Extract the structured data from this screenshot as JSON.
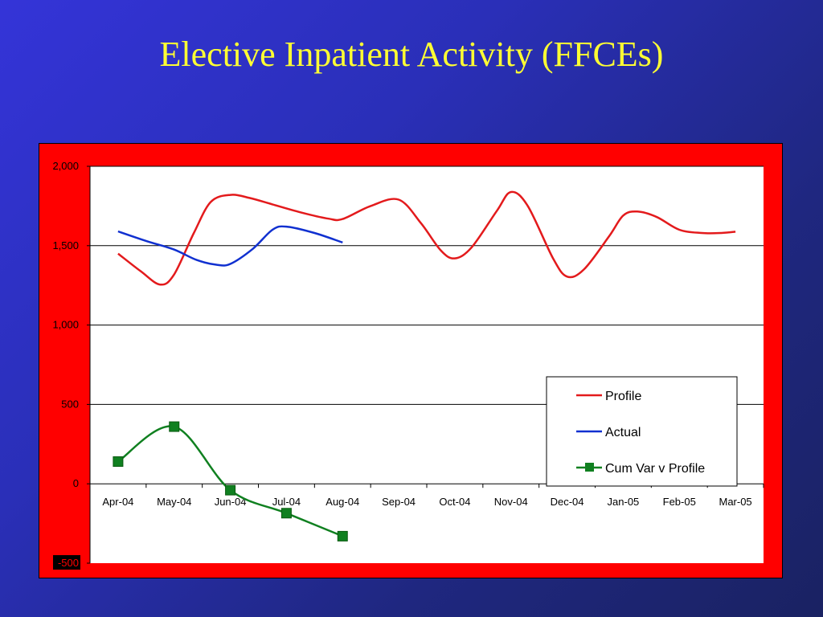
{
  "slide": {
    "title": "Elective Inpatient Activity (FFCEs)"
  },
  "colors": {
    "frame": "#ff0000",
    "plot_bg": "#ffffff",
    "profile": "#e31a1c",
    "actual": "#1030d0",
    "cumvar": "#108020"
  },
  "chart_data": {
    "type": "line",
    "title": "",
    "xlabel": "",
    "ylabel": "",
    "categories": [
      "Apr-04",
      "May-04",
      "Jun-04",
      "Jul-04",
      "Aug-04",
      "Sep-04",
      "Oct-04",
      "Nov-04",
      "Dec-04",
      "Jan-05",
      "Feb-05",
      "Mar-05"
    ],
    "ylim": [
      -500,
      2000
    ],
    "yticks": [
      -500,
      0,
      500,
      1000,
      1500,
      2000
    ],
    "ytick_labels": [
      "-500",
      "0",
      "500",
      "1,000",
      "1,500",
      "2,000"
    ],
    "grid": true,
    "legend_position": "right-center",
    "series": [
      {
        "name": "Profile",
        "marker": "none",
        "smooth": true,
        "points": [
          [
            0,
            1450
          ],
          [
            0.4,
            1340
          ],
          [
            0.75,
            1255
          ],
          [
            1.0,
            1320
          ],
          [
            1.35,
            1580
          ],
          [
            1.65,
            1775
          ],
          [
            2.0,
            1820
          ],
          [
            2.35,
            1800
          ],
          [
            2.75,
            1760
          ],
          [
            3.25,
            1710
          ],
          [
            3.75,
            1670
          ],
          [
            4.0,
            1668
          ],
          [
            4.5,
            1750
          ],
          [
            5.0,
            1790
          ],
          [
            5.4,
            1640
          ],
          [
            5.75,
            1470
          ],
          [
            6.0,
            1420
          ],
          [
            6.3,
            1490
          ],
          [
            6.75,
            1720
          ],
          [
            7.0,
            1838
          ],
          [
            7.3,
            1750
          ],
          [
            7.75,
            1420
          ],
          [
            8.0,
            1305
          ],
          [
            8.3,
            1350
          ],
          [
            8.75,
            1560
          ],
          [
            9.0,
            1690
          ],
          [
            9.25,
            1715
          ],
          [
            9.6,
            1680
          ],
          [
            10.0,
            1600
          ],
          [
            10.4,
            1580
          ],
          [
            10.75,
            1580
          ],
          [
            11.0,
            1588
          ]
        ]
      },
      {
        "name": "Actual",
        "marker": "none",
        "smooth": true,
        "points": [
          [
            0,
            1590
          ],
          [
            0.5,
            1530
          ],
          [
            1.0,
            1475
          ],
          [
            1.4,
            1410
          ],
          [
            1.75,
            1380
          ],
          [
            2.0,
            1385
          ],
          [
            2.4,
            1480
          ],
          [
            2.75,
            1600
          ],
          [
            3.0,
            1620
          ],
          [
            3.5,
            1580
          ],
          [
            4.0,
            1520
          ]
        ]
      },
      {
        "name": "Cum Var v Profile",
        "marker": "square",
        "smooth": true,
        "points": [
          [
            0,
            140
          ],
          [
            1,
            360
          ],
          [
            2,
            -40
          ],
          [
            3,
            -185
          ],
          [
            4,
            -330
          ]
        ]
      }
    ]
  }
}
